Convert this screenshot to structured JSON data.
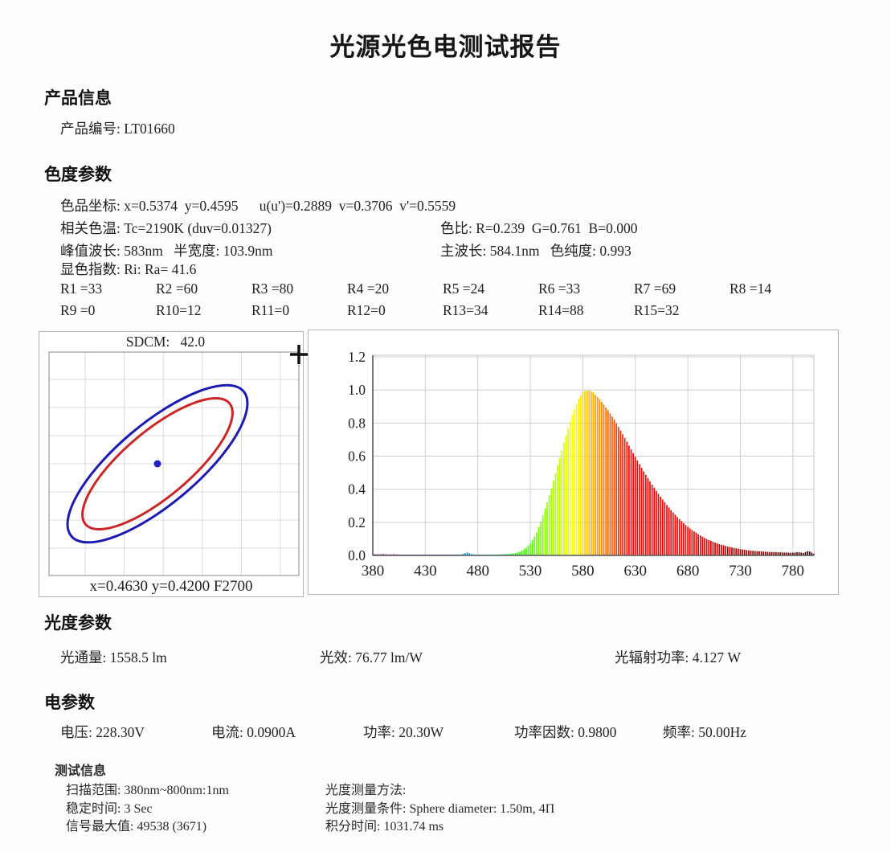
{
  "title": "光源光色电测试报告",
  "sections": {
    "product": {
      "heading": "产品信息",
      "product_id": "产品编号: LT01660"
    },
    "chromaticity": {
      "heading": "色度参数",
      "coords_line": "色品坐标: x=0.5374  y=0.4595      u(u')=0.2889  v=0.3706  v'=0.5559",
      "cct": "相关色温: Tc=2190K (duv=0.01327)",
      "color_ratio": "色比: R=0.239  G=0.761  B=0.000",
      "peak_wavelength": "峰值波长: 583nm   半宽度: 103.9nm",
      "dominant_wavelength": "主波长: 584.1nm   色纯度: 0.993",
      "cri_summary": "显色指数: Ri: Ra= 41.6",
      "cri_row1": [
        "R1 =33",
        "R2 =60",
        "R3 =80",
        "R4 =20",
        "R5 =24",
        "R6 =33",
        "R7 =69",
        "R8 =14"
      ],
      "cri_row2": [
        "R9 =0",
        "R10=12",
        "R11=0",
        "R12=0",
        "R13=34",
        "R14=88",
        "R15=32"
      ]
    },
    "photometric": {
      "heading": "光度参数",
      "luminous_flux": "光通量: 1558.5 lm",
      "efficacy": "光效: 76.77 lm/W",
      "radiant_power": "光辐射功率: 4.127 W"
    },
    "electrical": {
      "heading": "电参数",
      "voltage": "电压: 228.30V",
      "current": "电流: 0.0900A",
      "power": "功率: 20.30W",
      "power_factor": "功率因数: 0.9800",
      "frequency": "频率: 50.00Hz"
    },
    "test_info": {
      "heading": "测试信息",
      "scan_range": "扫描范围: 380nm~800nm:1nm",
      "stabilize_time": "稳定时间: 3 Sec",
      "signal_max": "信号最大值: 49538 (3671)",
      "photometry_method": "光度测量方法:",
      "photometry_condition": "光度测量条件: Sphere diameter: 1.50m, 4Π",
      "integration_time": "积分时间: 1031.74 ms"
    }
  },
  "chart_data": [
    {
      "id": "sdcm_ellipse_chart",
      "type": "scatter",
      "title": "SDCM:   42.0",
      "footer": "x=0.4630 y=0.4200 F2700",
      "sdcm_value": 42.0,
      "reference": {
        "x": 0.463,
        "y": 0.42,
        "bin": "F2700"
      },
      "measured_point": {
        "x": 0.5374,
        "y": 0.4595
      },
      "point_color": "#2121c4",
      "ellipses": [
        {
          "name": "outer-tolerance-ellipse",
          "color": "#1b1bb4",
          "rx": 140,
          "ry": 50,
          "angle": -40
        },
        {
          "name": "inner-tolerance-ellipse",
          "color": "#cc2626",
          "rx": 117,
          "ry": 41,
          "angle": -40
        }
      ]
    },
    {
      "id": "spectrum_chart",
      "type": "area",
      "title": "",
      "xlabel": "",
      "ylabel": "",
      "x_ticks": [
        380,
        430,
        480,
        530,
        580,
        630,
        680,
        730,
        780
      ],
      "y_ticks": [
        "0.0",
        "0.2",
        "0.4",
        "0.6",
        "0.8",
        "1.0",
        "1.2"
      ],
      "xlim": [
        380,
        800
      ],
      "ylim": [
        0,
        1.21
      ],
      "grid": true,
      "x": [
        380,
        385,
        390,
        395,
        400,
        405,
        410,
        415,
        420,
        425,
        430,
        435,
        440,
        445,
        450,
        455,
        460,
        465,
        470,
        475,
        480,
        485,
        490,
        495,
        500,
        505,
        510,
        515,
        520,
        525,
        530,
        535,
        540,
        545,
        550,
        555,
        560,
        565,
        570,
        575,
        580,
        585,
        590,
        595,
        600,
        605,
        610,
        615,
        620,
        625,
        630,
        635,
        640,
        645,
        650,
        655,
        660,
        665,
        670,
        675,
        680,
        685,
        690,
        695,
        700,
        705,
        710,
        715,
        720,
        725,
        730,
        735,
        740,
        745,
        750,
        755,
        760,
        765,
        770,
        775,
        780,
        785,
        790,
        795,
        800
      ],
      "y": [
        0.008,
        0.006,
        0.008,
        0.005,
        0.007,
        0.005,
        0.005,
        0.005,
        0.005,
        0.005,
        0.005,
        0.005,
        0.005,
        0.005,
        0.005,
        0.005,
        0.005,
        0.006,
        0.018,
        0.006,
        0.005,
        0.005,
        0.005,
        0.005,
        0.006,
        0.007,
        0.009,
        0.013,
        0.022,
        0.04,
        0.072,
        0.125,
        0.205,
        0.3,
        0.405,
        0.52,
        0.635,
        0.748,
        0.852,
        0.935,
        0.988,
        1.0,
        0.985,
        0.952,
        0.912,
        0.868,
        0.82,
        0.766,
        0.71,
        0.652,
        0.596,
        0.54,
        0.487,
        0.437,
        0.39,
        0.346,
        0.305,
        0.267,
        0.232,
        0.201,
        0.173,
        0.149,
        0.128,
        0.109,
        0.093,
        0.08,
        0.068,
        0.059,
        0.051,
        0.044,
        0.038,
        0.033,
        0.029,
        0.026,
        0.024,
        0.022,
        0.02,
        0.019,
        0.018,
        0.017,
        0.016,
        0.02,
        0.015,
        0.028,
        0.01
      ]
    }
  ]
}
